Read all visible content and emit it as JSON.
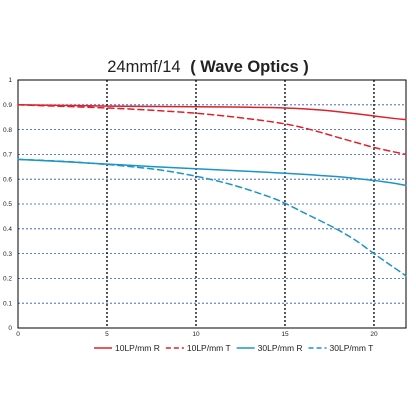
{
  "chart_data": {
    "type": "line",
    "title_plain": "24mmf/14",
    "title_bold": "( Wave Optics )",
    "xlabel": "",
    "ylabel": "",
    "xlim": [
      0,
      21.8
    ],
    "ylim": [
      0,
      1
    ],
    "x_ticks": [
      "0",
      "5",
      "10",
      "15",
      "20"
    ],
    "y_ticks": [
      "0",
      "0.1",
      "0.2",
      "0.3",
      "0.4",
      "0.5",
      "0.6",
      "0.7",
      "0.8",
      "0.9",
      "1"
    ],
    "grid": "y-dotted-blue, x-dotted-black at 5,10,15,20",
    "legend_position": "bottom",
    "series": [
      {
        "name": "10LP/mm R",
        "color": "#e0202a",
        "dash": false,
        "x": [
          0,
          2,
          4,
          6,
          8,
          10,
          12,
          14,
          15,
          16,
          17,
          18,
          19,
          20,
          21,
          21.8
        ],
        "y": [
          0.9,
          0.898,
          0.896,
          0.894,
          0.893,
          0.892,
          0.891,
          0.889,
          0.887,
          0.884,
          0.879,
          0.872,
          0.864,
          0.855,
          0.846,
          0.84
        ]
      },
      {
        "name": "10LP/mm T",
        "color": "#e0202a",
        "dash": true,
        "x": [
          0,
          2,
          4,
          6,
          8,
          10,
          12,
          14,
          15,
          16,
          17,
          18,
          19,
          20,
          21,
          21.8
        ],
        "y": [
          0.9,
          0.895,
          0.89,
          0.884,
          0.876,
          0.866,
          0.852,
          0.834,
          0.823,
          0.808,
          0.789,
          0.768,
          0.748,
          0.728,
          0.712,
          0.7
        ]
      },
      {
        "name": "30LP/mm R",
        "color": "#1b95c6",
        "dash": false,
        "x": [
          0,
          2,
          4,
          6,
          8,
          10,
          12,
          14,
          15,
          16,
          17,
          18,
          19,
          20,
          21,
          21.8
        ],
        "y": [
          0.68,
          0.673,
          0.665,
          0.657,
          0.649,
          0.642,
          0.635,
          0.628,
          0.624,
          0.62,
          0.615,
          0.61,
          0.603,
          0.595,
          0.585,
          0.575
        ]
      },
      {
        "name": "30LP/mm T",
        "color": "#1b95c6",
        "dash": true,
        "x": [
          0,
          2,
          4,
          6,
          8,
          10,
          12,
          14,
          15,
          16,
          17,
          18,
          19,
          20,
          21,
          21.8
        ],
        "y": [
          0.68,
          0.674,
          0.665,
          0.653,
          0.637,
          0.612,
          0.578,
          0.532,
          0.503,
          0.467,
          0.432,
          0.395,
          0.352,
          0.3,
          0.25,
          0.21
        ]
      }
    ]
  }
}
